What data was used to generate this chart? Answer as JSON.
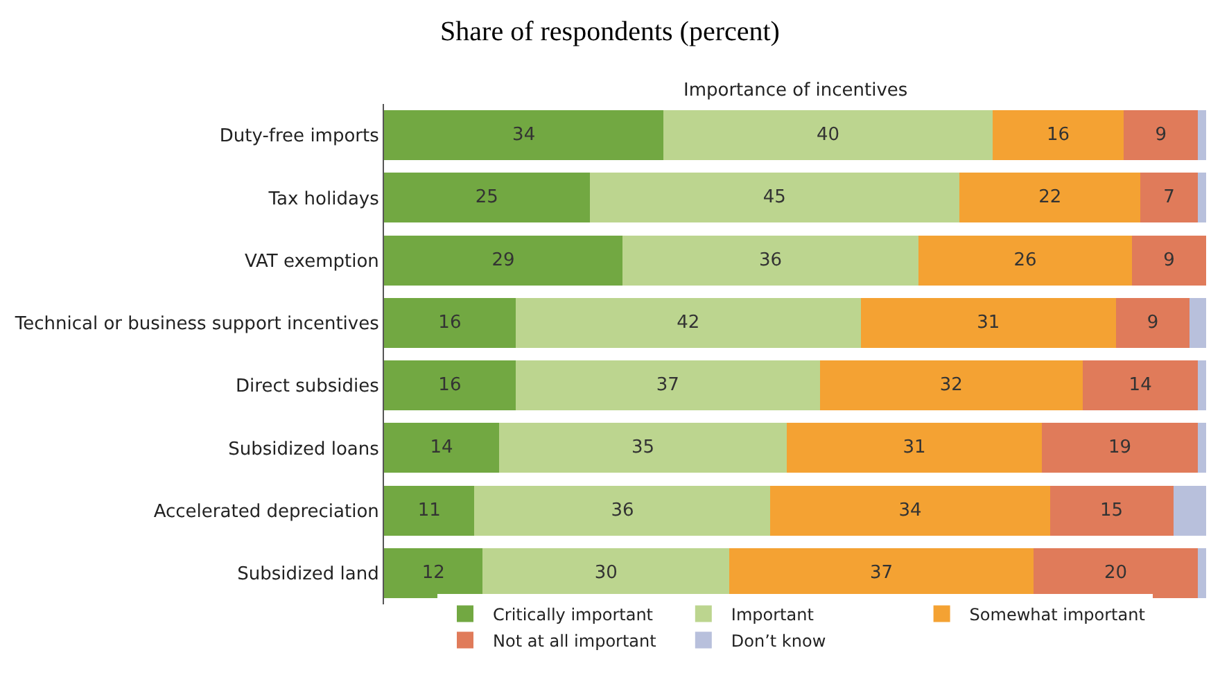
{
  "chart_data": {
    "type": "bar",
    "orientation": "horizontal",
    "stacked": true,
    "title": "Share of respondents (percent)",
    "subtitle": "Importance of incentives",
    "categories": [
      "Duty-free imports",
      "Tax holidays",
      "VAT exemption",
      "Technical or business support incentives",
      "Direct subsidies",
      "Subsidized loans",
      "Accelerated depreciation",
      "Subsidized land"
    ],
    "series": [
      {
        "name": "Critically important",
        "color": "#72a842",
        "values": [
          34,
          25,
          29,
          16,
          16,
          14,
          11,
          12
        ],
        "value_labels": [
          "34",
          "25",
          "29",
          "16",
          "16",
          "14",
          "11",
          "12"
        ]
      },
      {
        "name": "Important",
        "color": "#bcd58f",
        "values": [
          40,
          45,
          36,
          42,
          37,
          35,
          36,
          30
        ],
        "value_labels": [
          "40",
          "45",
          "36",
          "42",
          "37",
          "35",
          "36",
          "30"
        ]
      },
      {
        "name": "Somewhat important",
        "color": "#f4a233",
        "values": [
          16,
          22,
          26,
          31,
          32,
          31,
          34,
          37
        ],
        "value_labels": [
          "16",
          "22",
          "26",
          "31",
          "32",
          "31",
          "34",
          "37"
        ]
      },
      {
        "name": "Not at all important",
        "color": "#e07b5a",
        "values": [
          9,
          7,
          9,
          9,
          14,
          19,
          15,
          20
        ],
        "value_labels": [
          "9",
          "7",
          "9",
          "9",
          "14",
          "19",
          "15",
          "20"
        ]
      },
      {
        "name": "Don’t know",
        "color": "#b8c0dc",
        "values": [
          1,
          1,
          0,
          2,
          1,
          1,
          4,
          1
        ],
        "value_labels": [
          null,
          null,
          null,
          null,
          null,
          null,
          null,
          null
        ]
      }
    ],
    "xlim": [
      0,
      100
    ],
    "tick_labels": "y",
    "legend": "bottom"
  }
}
